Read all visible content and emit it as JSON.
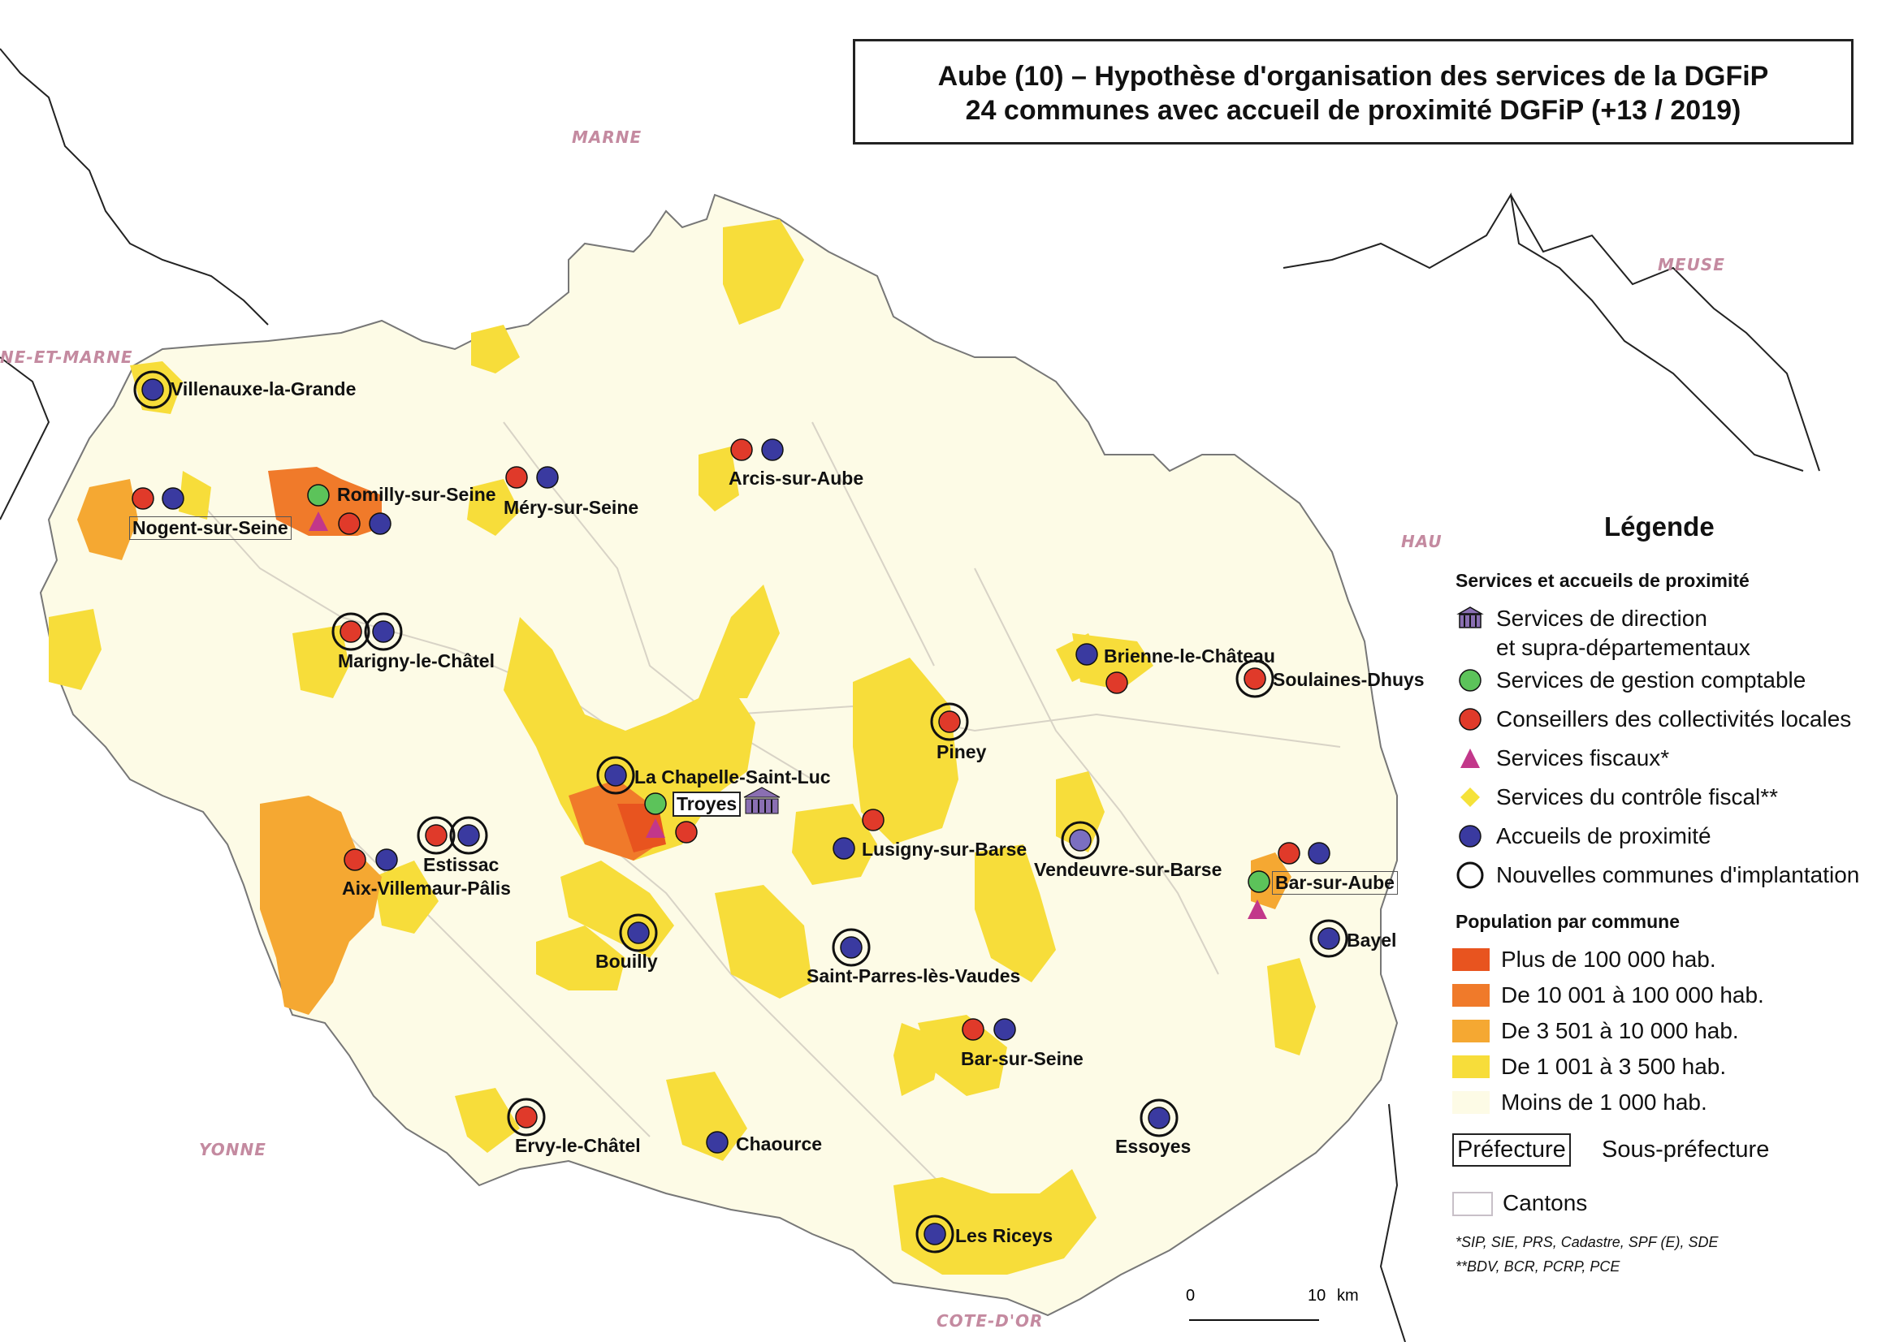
{
  "title": {
    "line1": "Aube (10) – Hypothèse d'organisation des services de la DGFiP",
    "line2": "24 communes avec accueil de proximité DGFiP (+13 / 2019)"
  },
  "neighbors": {
    "marne": "MARNE",
    "meuse": "MEUSE",
    "seine_et_marne": "NE-ET-MARNE",
    "haute_marne": "HAU",
    "yonne": "YONNE",
    "cote_dor": "COTE-D'OR"
  },
  "communes": {
    "villenauxe": "Villenauxe-la-Grande",
    "nogent": "Nogent-sur-Seine",
    "romilly": "Romilly-sur-Seine",
    "mery": "Méry-sur-Seine",
    "arcis": "Arcis-sur-Aube",
    "marigny": "Marigny-le-Châtel",
    "brienne": "Brienne-le-Château",
    "soulaines": "Soulaines-Dhuys",
    "piney": "Piney",
    "chapelle": "La Chapelle-Saint-Luc",
    "troyes": "Troyes",
    "lusigny": "Lusigny-sur-Barse",
    "vendeuvre": "Vendeuvre-sur-Barse",
    "bar_sur_aube": "Bar-sur-Aube",
    "estissac": "Estissac",
    "aix": "Aix-Villemaur-Pâlis",
    "bayel": "Bayel",
    "bouilly": "Bouilly",
    "saint_parres": "Saint-Parres-lès-Vaudes",
    "bar_sur_seine": "Bar-sur-Seine",
    "ervy": "Ervy-le-Châtel",
    "chaource": "Chaource",
    "essoyes": "Essoyes",
    "riceys": "Les Riceys"
  },
  "legend": {
    "title": "Légende",
    "services_heading": "Services et accueils de proximité",
    "direction_line1": "Services de direction",
    "direction_line2": "et supra-départementaux",
    "gestion": "Services de gestion comptable",
    "conseillers": "Conseillers des collectivités locales",
    "fiscaux": "Services fiscaux*",
    "controle": "Services du contrôle fiscal**",
    "accueils": "Accueils de proximité",
    "nouvelles": "Nouvelles communes d'implantation",
    "population_heading": "Population par commune",
    "pop_1": "Plus de 100 000 hab.",
    "pop_2": "De 10 001 à 100 000 hab.",
    "pop_3": "De 3 501 à  10 000 hab.",
    "pop_4": "De 1 001 à  3 500 hab.",
    "pop_5": "Moins de 1 000 hab.",
    "prefecture": "Préfecture",
    "sous_prefecture": "Sous-préfecture",
    "cantons": "Cantons",
    "note1": "*SIP, SIE, PRS, Cadastre, SPF (E), SDE",
    "note2": "**BDV, BCR, PCRP, PCE"
  },
  "scale": {
    "start": "0",
    "end": "10",
    "unit": "km"
  },
  "colors": {
    "pop_1": "#e8541f",
    "pop_2": "#f07a2a",
    "pop_3": "#f5a832",
    "pop_4": "#f7dd3a",
    "pop_5": "#fdfbe6",
    "gestion": "#5cc35a",
    "conseillers": "#e03a2a",
    "fiscaux": "#c2378a",
    "controle": "#f5e23a",
    "accueils": "#3a3aa0",
    "direction": "#8a6fb2"
  }
}
